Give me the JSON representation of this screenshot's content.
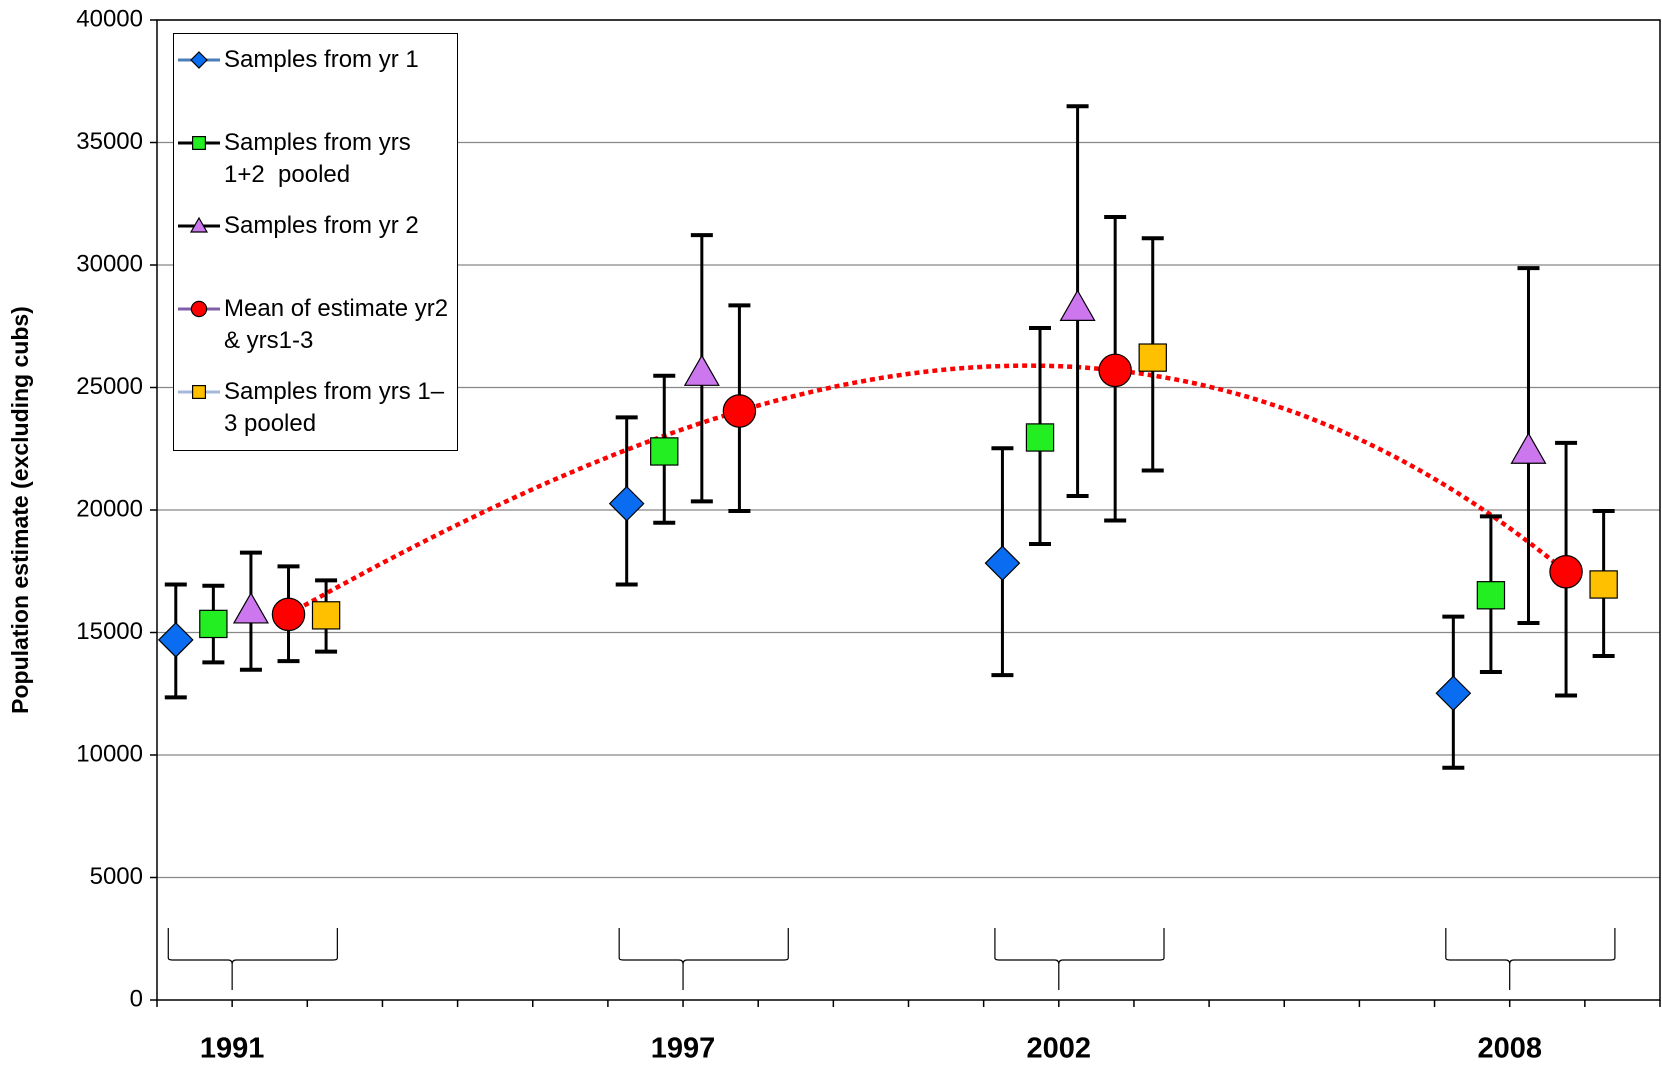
{
  "chart_data": {
    "type": "errorbar",
    "ylabel": "Population estimate (excluding cubs)",
    "xlim": [
      0,
      20
    ],
    "ylim": [
      0,
      40000
    ],
    "yticks": [
      0,
      5000,
      10000,
      15000,
      20000,
      25000,
      30000,
      35000,
      40000
    ],
    "xticks": [
      {
        "value": 1,
        "label": "1991"
      },
      {
        "value": 7,
        "label": "1997"
      },
      {
        "value": 12,
        "label": "2002"
      },
      {
        "value": 18,
        "label": "2008"
      }
    ],
    "minor_xticks": [
      0,
      1,
      2,
      3,
      4,
      5,
      6,
      7,
      8,
      9,
      10,
      11,
      12,
      13,
      14,
      15,
      16,
      17,
      18,
      19,
      20
    ],
    "grid": true,
    "trendline": {
      "series": 3,
      "order": 3,
      "color": "#ff0000"
    },
    "series": [
      {
        "name": "Samples from yr 1",
        "color": "#0a6cf0",
        "marker": "diamond",
        "legend_line_color": "#4a7ebb",
        "x": [
          0.25,
          6.25,
          11.25,
          17.25
        ],
        "values": [
          14700,
          20260,
          17830,
          12520
        ],
        "lower": [
          12350,
          16960,
          13260,
          9480
        ],
        "upper": [
          16960,
          23780,
          22520,
          15650
        ]
      },
      {
        "name": "Samples from yrs 1+2  pooled",
        "color": "#22ee22",
        "marker": "square",
        "legend_line_color": "#000000",
        "x": [
          0.75,
          6.75,
          11.75,
          17.75
        ],
        "values": [
          15350,
          22390,
          22960,
          16520
        ],
        "lower": [
          13780,
          19480,
          18610,
          13390
        ],
        "upper": [
          16910,
          25480,
          27430,
          19740
        ]
      },
      {
        "name": "Samples from yr 2",
        "color": "#cc77ee",
        "marker": "triangle",
        "legend_line_color": "#000000",
        "x": [
          1.25,
          7.25,
          12.25,
          18.25
        ],
        "values": [
          15910,
          25610,
          28260,
          22430
        ],
        "lower": [
          13480,
          20350,
          20570,
          15390
        ],
        "upper": [
          18260,
          31220,
          36480,
          29870
        ]
      },
      {
        "name": "Mean of estimate yr2 & yrs1-3",
        "color": "#ff0000",
        "marker": "circle",
        "legend_line_color": "#7f5fa8",
        "x": [
          1.75,
          7.75,
          12.75,
          18.75
        ],
        "values": [
          15740,
          24040,
          25700,
          17480
        ],
        "lower": [
          13830,
          19960,
          19570,
          12430
        ],
        "upper": [
          17700,
          28350,
          31960,
          22740
        ]
      },
      {
        "name": "Samples from yrs 1– 3 pooled",
        "color": "#ffc000",
        "marker": "square",
        "legend_line_color": "#a6b8d8",
        "x": [
          2.25,
          8.25,
          13.25,
          19.25
        ],
        "values": [
          15700,
          null,
          26220,
          16960
        ],
        "lower": [
          14220,
          null,
          21610,
          14040
        ],
        "upper": [
          17130,
          null,
          31090,
          19960
        ]
      }
    ]
  }
}
